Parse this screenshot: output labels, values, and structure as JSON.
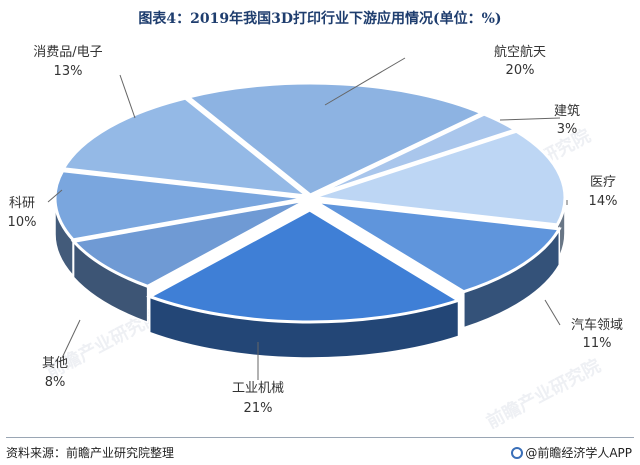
{
  "title": "图表4：2019年我国3D打印行业下游应用情况(单位：%)",
  "source": "资料来源：前瞻产业研究院整理",
  "brand": "@前瞻经济学人APP",
  "watermark": "前瞻产业研究院",
  "chart_data": {
    "type": "pie",
    "title": "图表4：2019年我国3D打印行业下游应用情况(单位：%)",
    "unit": "%",
    "slices": [
      {
        "name": "航空航天",
        "value": 20,
        "label": "20%",
        "color": "#8db3e2"
      },
      {
        "name": "建筑",
        "value": 3,
        "label": "3%",
        "color": "#a9c6ec"
      },
      {
        "name": "医疗",
        "value": 14,
        "label": "14%",
        "color": "#bdd6f4"
      },
      {
        "name": "汽车领域",
        "value": 11,
        "label": "11%",
        "color": "#5f95dc"
      },
      {
        "name": "工业机械",
        "value": 21,
        "label": "21%",
        "color": "#3f7fd6"
      },
      {
        "name": "其他",
        "value": 8,
        "label": "8%",
        "color": "#6f9ad4"
      },
      {
        "name": "科研",
        "value": 10,
        "label": "10%",
        "color": "#7aa6de"
      },
      {
        "name": "消费品/电子",
        "value": 13,
        "label": "13%",
        "color": "#94b9e6"
      }
    ]
  }
}
